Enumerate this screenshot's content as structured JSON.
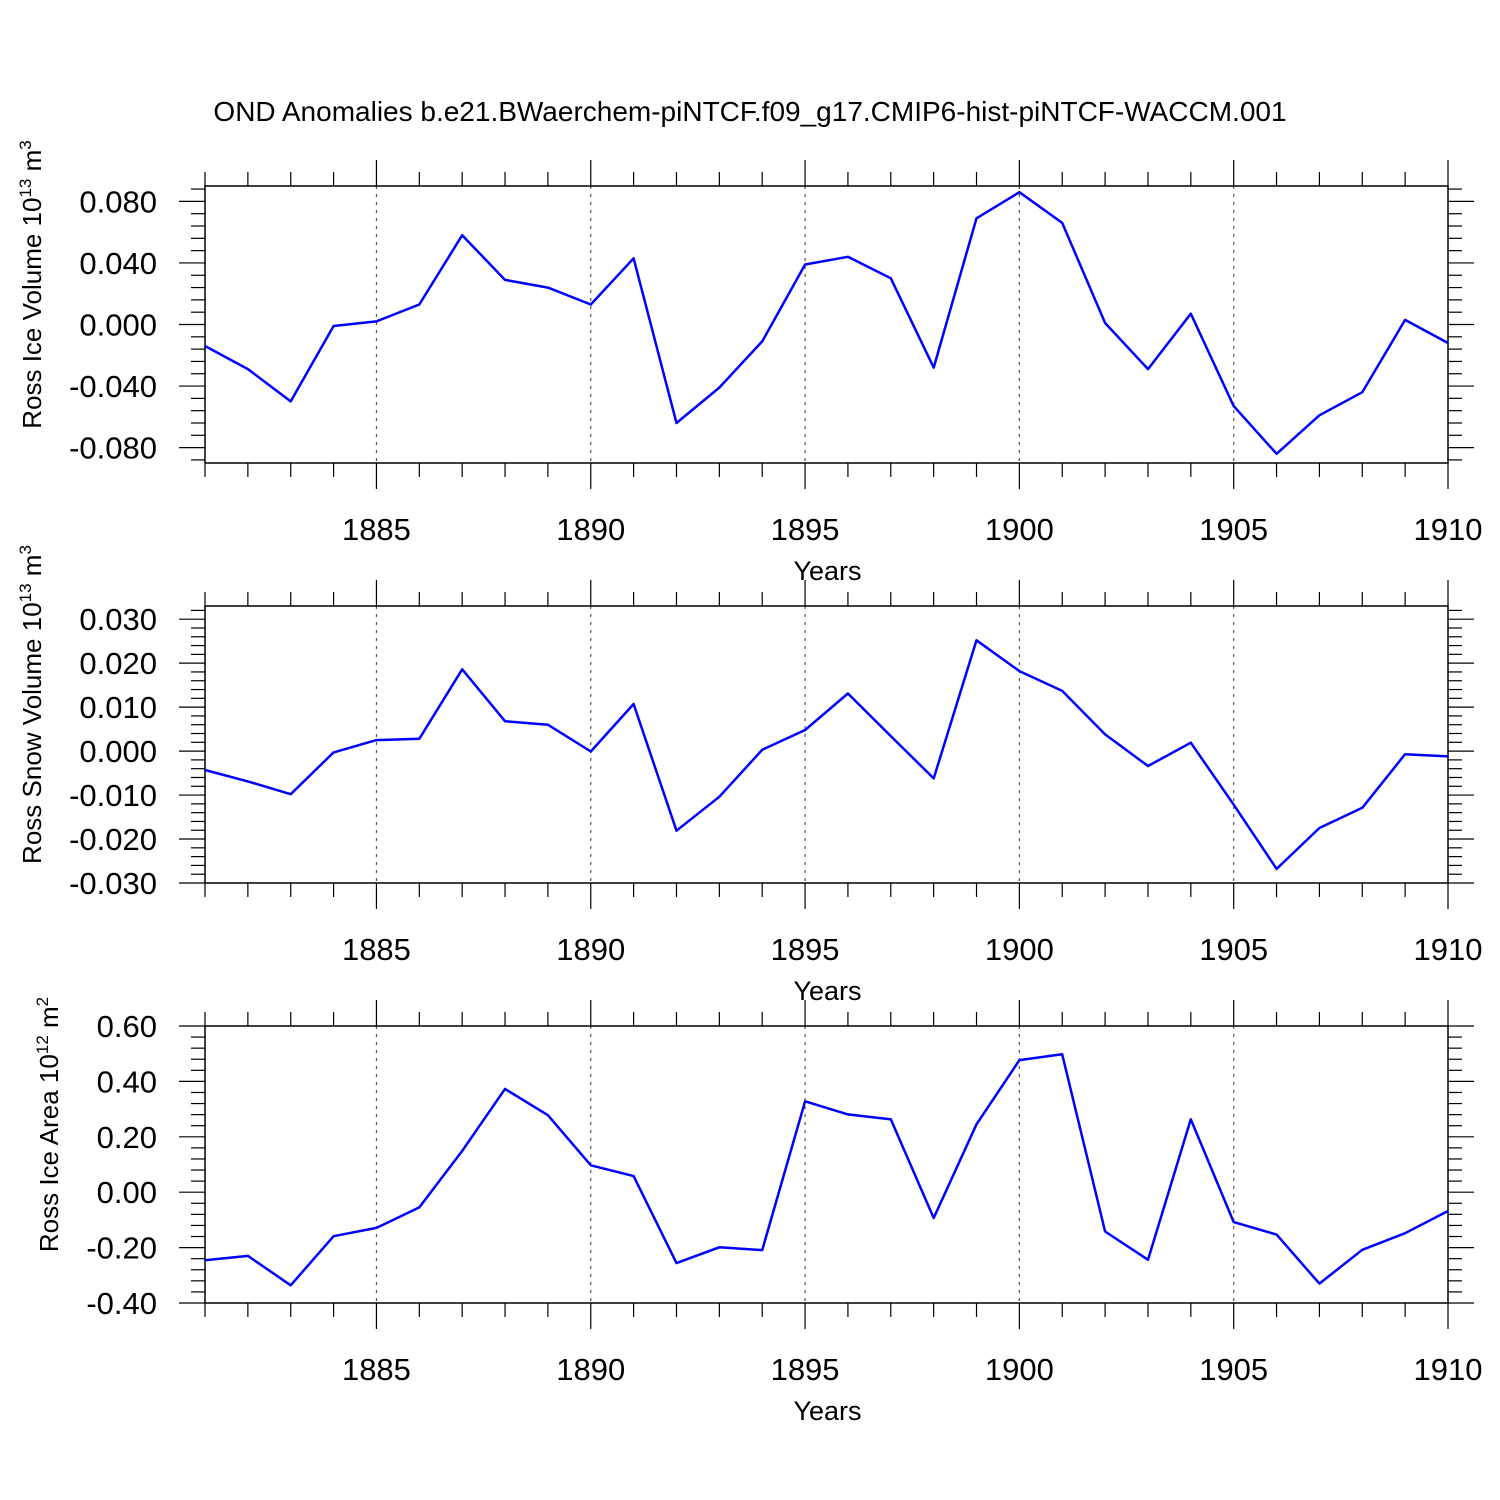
{
  "title": "OND Anomalies b.e21.BWaerchem-piNTCF.f09_g17.CMIP6-hist-piNTCF-WACCM.001",
  "line_color": "#0000ff",
  "chart_data": [
    {
      "type": "line",
      "title": "",
      "ylabel": "Ross Ice Volume 10",
      "ylabel_exp": "13",
      "ylabel_unit": " m",
      "ylabel_unit_exp": "3",
      "xlabel": "Years",
      "xlim": [
        1881,
        1910
      ],
      "ylim": [
        -0.09,
        0.09
      ],
      "yticks": [
        -0.08,
        -0.04,
        0.0,
        0.04,
        0.08
      ],
      "ytick_labels": [
        "-0.080",
        "-0.040",
        "0.000",
        "0.040",
        "0.080"
      ],
      "xticks": [
        1885,
        1890,
        1895,
        1900,
        1905,
        1910
      ],
      "xtick_labels": [
        "1885",
        "1890",
        "1895",
        "1900",
        "1905",
        "1910"
      ],
      "grid": "dashed vertical lines at major x ticks",
      "x": [
        1881,
        1882,
        1883,
        1884,
        1885,
        1886,
        1887,
        1888,
        1889,
        1890,
        1891,
        1892,
        1893,
        1894,
        1895,
        1896,
        1897,
        1898,
        1899,
        1900,
        1901,
        1902,
        1903,
        1904,
        1905,
        1906,
        1907,
        1908,
        1909,
        1910
      ],
      "series": [
        {
          "values": [
            -0.014,
            -0.029,
            -0.05,
            -0.001,
            0.002,
            0.013,
            0.058,
            0.029,
            0.024,
            0.013,
            0.043,
            -0.064,
            -0.041,
            -0.011,
            0.039,
            0.044,
            0.03,
            -0.028,
            0.069,
            0.086,
            0.066,
            0.001,
            -0.029,
            0.007,
            -0.053,
            -0.084,
            -0.059,
            -0.044,
            0.003,
            -0.012
          ]
        }
      ]
    },
    {
      "type": "line",
      "title": "",
      "ylabel": "Ross Snow Volume 10",
      "ylabel_exp": "13",
      "ylabel_unit": " m",
      "ylabel_unit_exp": "3",
      "xlabel": "Years",
      "xlim": [
        1881,
        1910
      ],
      "ylim": [
        -0.03,
        0.033
      ],
      "yticks": [
        -0.03,
        -0.02,
        -0.01,
        0.0,
        0.01,
        0.02,
        0.03
      ],
      "ytick_labels": [
        "-0.030",
        "-0.020",
        "-0.010",
        "0.000",
        "0.010",
        "0.020",
        "0.030"
      ],
      "xticks": [
        1885,
        1890,
        1895,
        1900,
        1905,
        1910
      ],
      "xtick_labels": [
        "1885",
        "1890",
        "1895",
        "1900",
        "1905",
        "1910"
      ],
      "grid": "dashed vertical lines at major x ticks",
      "x": [
        1881,
        1882,
        1883,
        1884,
        1885,
        1886,
        1887,
        1888,
        1889,
        1890,
        1891,
        1892,
        1893,
        1894,
        1895,
        1896,
        1897,
        1898,
        1899,
        1900,
        1901,
        1902,
        1903,
        1904,
        1905,
        1906,
        1907,
        1908,
        1909,
        1910
      ],
      "series": [
        {
          "values": [
            -0.0043,
            -0.0069,
            -0.0098,
            -0.0003,
            0.0025,
            0.0028,
            0.0186,
            0.0068,
            0.006,
            -0.0001,
            0.0107,
            -0.0181,
            -0.0104,
            0.0003,
            0.0048,
            0.0131,
            0.0034,
            -0.0062,
            0.0252,
            0.0182,
            0.0137,
            0.0038,
            -0.0034,
            0.0019,
            -0.0122,
            -0.0268,
            -0.0175,
            -0.0129,
            -0.0007,
            -0.0012
          ]
        }
      ]
    },
    {
      "type": "line",
      "title": "",
      "ylabel": "Ross Ice Area 10",
      "ylabel_exp": "12",
      "ylabel_unit": " m",
      "ylabel_unit_exp": "2",
      "xlabel": "Years",
      "xlim": [
        1881,
        1910
      ],
      "ylim": [
        -0.4,
        0.6
      ],
      "yticks": [
        -0.4,
        -0.2,
        0.0,
        0.2,
        0.4,
        0.6
      ],
      "ytick_labels": [
        "-0.40",
        "-0.20",
        "0.00",
        "0.20",
        "0.40",
        "0.60"
      ],
      "xticks": [
        1885,
        1890,
        1895,
        1900,
        1905,
        1910
      ],
      "xtick_labels": [
        "1885",
        "1890",
        "1895",
        "1900",
        "1905",
        "1910"
      ],
      "grid": "dashed vertical lines at major x ticks",
      "x": [
        1881,
        1882,
        1883,
        1884,
        1885,
        1886,
        1887,
        1888,
        1889,
        1890,
        1891,
        1892,
        1893,
        1894,
        1895,
        1896,
        1897,
        1898,
        1899,
        1900,
        1901,
        1902,
        1903,
        1904,
        1905,
        1906,
        1907,
        1908,
        1909,
        1910
      ],
      "series": [
        {
          "values": [
            -0.246,
            -0.23,
            -0.336,
            -0.159,
            -0.129,
            -0.055,
            0.149,
            0.373,
            0.278,
            0.097,
            0.058,
            -0.256,
            -0.199,
            -0.209,
            0.328,
            0.281,
            0.263,
            -0.093,
            0.245,
            0.477,
            0.498,
            -0.142,
            -0.244,
            0.263,
            -0.108,
            -0.153,
            -0.33,
            -0.208,
            -0.148,
            -0.068
          ]
        }
      ]
    }
  ]
}
